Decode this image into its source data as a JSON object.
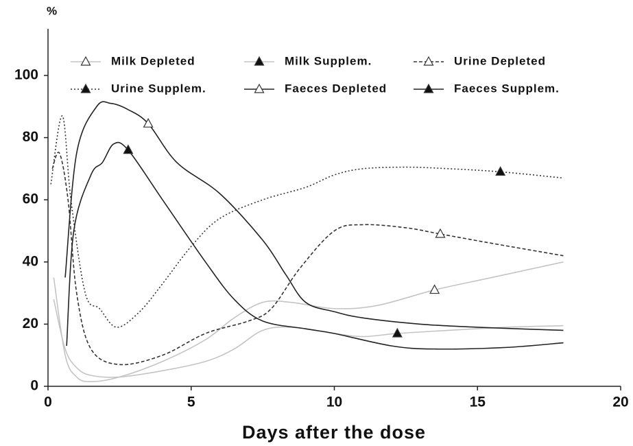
{
  "chart_data": {
    "type": "line",
    "y_label": "%",
    "x_label": "Days after the dose",
    "xlim": [
      0,
      20
    ],
    "xticks": [
      0,
      5,
      10,
      15,
      20
    ],
    "ylim": [
      0,
      115
    ],
    "yticks": [
      0,
      20,
      40,
      60,
      80,
      100
    ],
    "series": [
      {
        "name": "Milk Depleted",
        "color": "#c4c4c4",
        "style": "solid",
        "marker": "open",
        "marker_x": 13.5,
        "x": [
          0.2,
          0.6,
          1.0,
          1.5,
          2.5,
          4,
          5.5,
          6.5,
          7.5,
          8.5,
          10,
          11.5,
          13.5,
          15.5,
          18
        ],
        "values": [
          35,
          10,
          3,
          1.5,
          3,
          8,
          15,
          22,
          27,
          27,
          25,
          26,
          31,
          35,
          40
        ]
      },
      {
        "name": "Milk Supplem.",
        "color": "#c4c4c4",
        "style": "solid",
        "marker": "filled",
        "marker_x": 12.2,
        "x": [
          0.2,
          0.6,
          1.0,
          1.5,
          2.5,
          4,
          5.5,
          6.5,
          7.5,
          8.5,
          10,
          11,
          12.2,
          14,
          16,
          18
        ],
        "values": [
          28,
          12,
          6,
          3.5,
          3,
          5,
          8,
          12,
          18,
          19,
          17,
          16,
          17,
          18,
          19,
          19.5
        ]
      },
      {
        "name": "Urine Depleted",
        "color": "#333333",
        "style": "dashed",
        "marker": "open",
        "marker_x": 13.7,
        "x": [
          0.15,
          0.4,
          0.7,
          1.0,
          1.5,
          2.5,
          4,
          5.5,
          7,
          7.8,
          8.8,
          10,
          11,
          12.5,
          13.7,
          15.5,
          18
        ],
        "values": [
          70,
          75,
          60,
          30,
          12,
          7,
          10,
          17,
          21,
          25,
          38,
          50,
          52,
          51,
          49,
          46,
          42
        ]
      },
      {
        "name": "Urine Supplem.",
        "color": "#333333",
        "style": "dotted",
        "marker": "filled",
        "marker_x": 15.8,
        "x": [
          0.1,
          0.5,
          0.8,
          1.3,
          1.8,
          2.4,
          3.2,
          4,
          5,
          6,
          7.5,
          9,
          10,
          11,
          12.5,
          14,
          15.8,
          18
        ],
        "values": [
          65,
          87,
          60,
          30,
          25,
          19,
          24,
          33,
          45,
          54,
          60,
          64,
          68,
          70,
          70.5,
          70,
          69,
          67
        ]
      },
      {
        "name": "Faeces Depleted",
        "color": "#222222",
        "style": "solid",
        "marker": "open",
        "marker_x": 3.5,
        "x": [
          0.6,
          1.0,
          1.7,
          2.2,
          2.8,
          3.5,
          4.5,
          6,
          7.5,
          8.3,
          9,
          10,
          11,
          13,
          15,
          18
        ],
        "values": [
          35,
          75,
          90,
          91,
          89,
          84.5,
          72,
          62,
          47,
          36,
          27,
          24,
          22,
          20,
          19,
          18
        ]
      },
      {
        "name": "Faeces Supplem.",
        "color": "#222222",
        "style": "solid",
        "marker": "filled",
        "marker_x": 2.8,
        "x": [
          0.65,
          0.9,
          1.5,
          1.9,
          2.3,
          2.8,
          4,
          5.5,
          6.5,
          7.5,
          9,
          10,
          12,
          13.5,
          16,
          18
        ],
        "values": [
          13,
          50,
          68,
          72,
          78,
          76,
          60,
          40,
          28,
          21,
          18.5,
          17,
          13,
          12,
          12.5,
          14
        ]
      }
    ]
  }
}
